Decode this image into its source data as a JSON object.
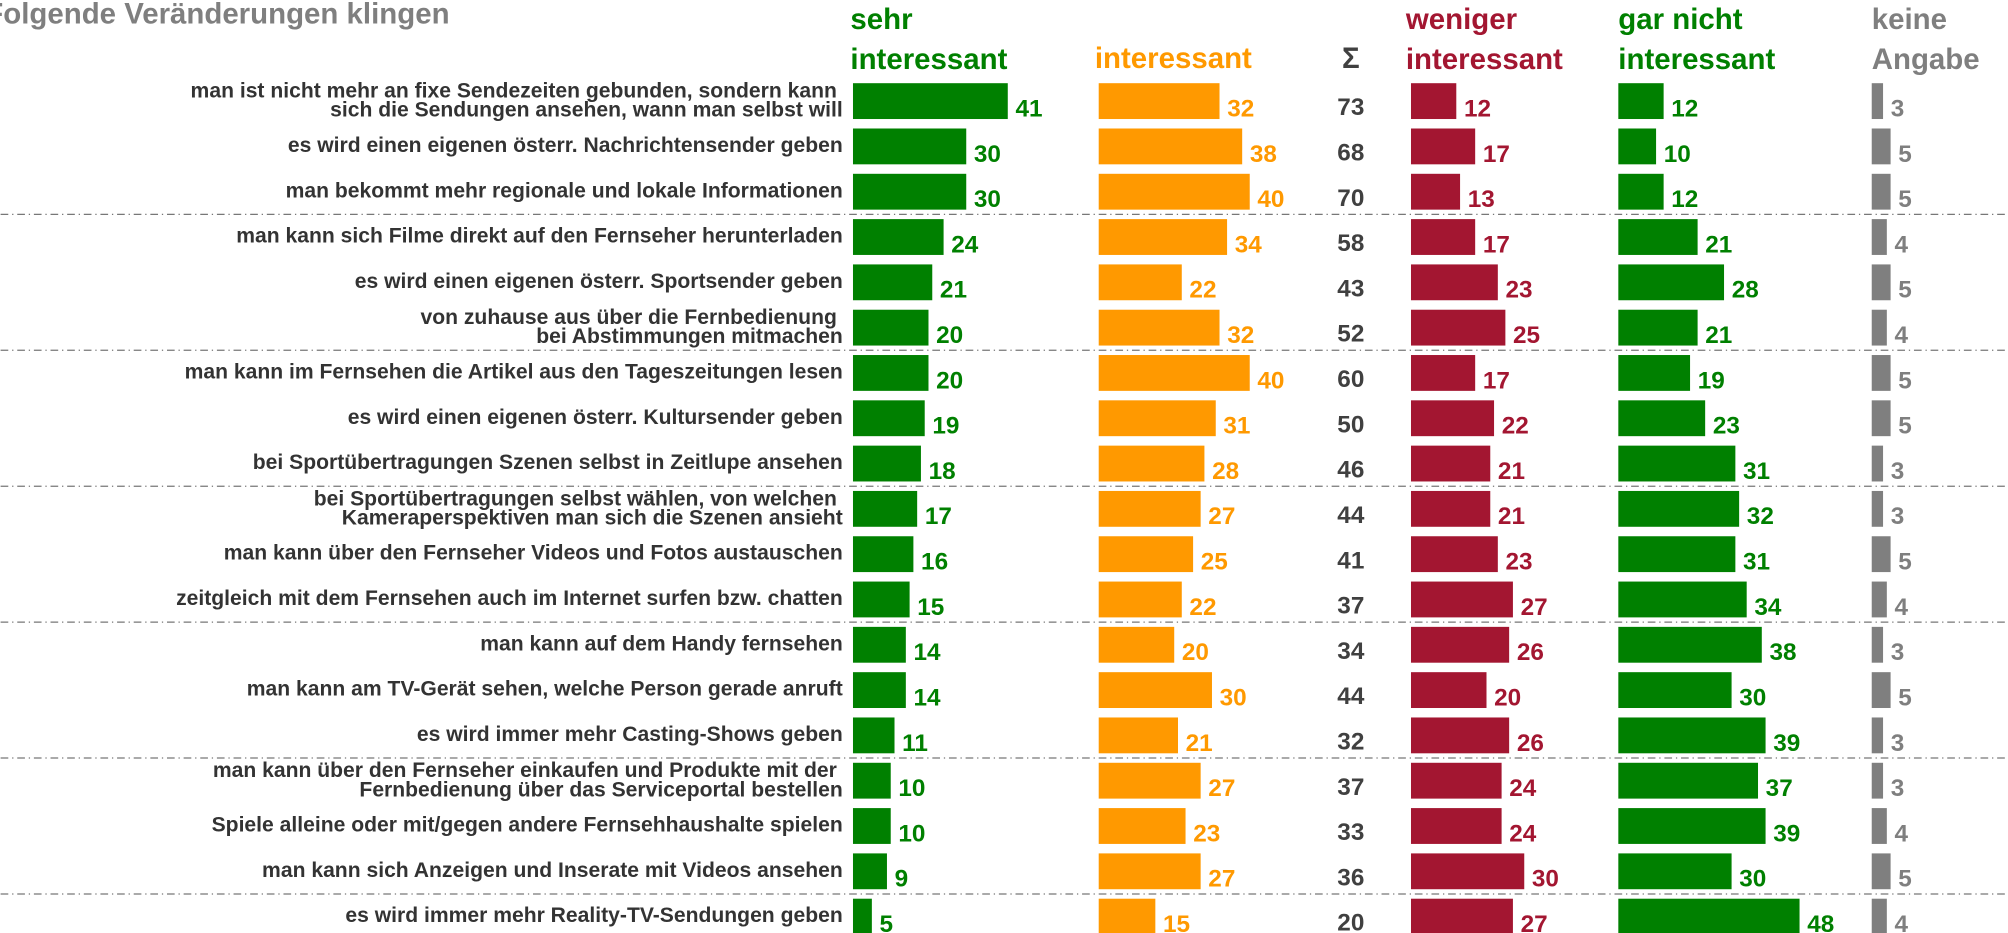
{
  "chart_data": {
    "type": "bar",
    "title": "Folgende Veränderungen klingen",
    "categories": [
      "man ist nicht mehr an fixe Sendezeiten gebunden, sondern kann\nsich die Sendungen ansehen, wann man selbst will",
      "es wird einen eigenen österr. Nachrichtensender geben",
      "man bekommt mehr regionale und lokale Informationen",
      "man kann sich Filme direkt auf den Fernseher herunterladen",
      "es wird einen eigenen österr. Sportsender geben",
      "von zuhause aus über die Fernbedienung\nbei Abstimmungen mitmachen",
      "man kann im Fernsehen die Artikel aus den Tageszeitungen lesen",
      "es wird einen eigenen österr. Kultursender geben",
      "bei Sportübertragungen Szenen selbst in Zeitlupe ansehen",
      "bei Sportübertragungen selbst wählen, von welchen\nKameraperspektiven man sich die Szenen ansieht",
      "man kann über den Fernseher Videos und Fotos austauschen",
      "zeitgleich mit dem Fernsehen auch im Internet surfen bzw. chatten",
      "man kann auf dem Handy fernsehen",
      "man kann am TV-Gerät sehen, welche Person gerade anruft",
      "es wird immer mehr Casting-Shows geben",
      "man kann über den Fernseher einkaufen und Produkte mit der\nFernbedienung über das Serviceportal bestellen",
      "Spiele alleine oder mit/gegen andere Fernsehhaushalte spielen",
      "man kann sich Anzeigen und Inserate mit Videos ansehen",
      "es wird immer mehr Reality-TV-Sendungen geben"
    ],
    "series": [
      {
        "name": "sehr\ninteressant",
        "color": "#008000",
        "values": [
          41,
          30,
          30,
          24,
          21,
          20,
          20,
          19,
          18,
          17,
          16,
          15,
          14,
          14,
          11,
          10,
          10,
          9,
          5
        ]
      },
      {
        "name": "interessant",
        "color": "#ff9900",
        "values": [
          32,
          38,
          40,
          34,
          22,
          32,
          40,
          31,
          28,
          27,
          25,
          22,
          20,
          30,
          21,
          27,
          23,
          27,
          15
        ]
      },
      {
        "name": "Σ",
        "color": "#404040",
        "bars": false,
        "values": [
          73,
          68,
          70,
          58,
          43,
          52,
          60,
          50,
          46,
          44,
          41,
          37,
          34,
          44,
          32,
          37,
          33,
          36,
          20
        ]
      },
      {
        "name": "weniger\ninteressant",
        "color": "#a31631",
        "values": [
          12,
          17,
          13,
          17,
          23,
          25,
          17,
          22,
          21,
          21,
          23,
          27,
          26,
          20,
          26,
          24,
          24,
          30,
          27
        ]
      },
      {
        "name": "gar nicht\ninteressant",
        "color": "#008000",
        "values": [
          12,
          10,
          12,
          21,
          28,
          21,
          19,
          23,
          31,
          32,
          31,
          34,
          38,
          30,
          39,
          37,
          39,
          30,
          48
        ]
      },
      {
        "name": "keine\nAngabe",
        "color": "#7f7f7f",
        "values": [
          3,
          5,
          5,
          4,
          5,
          4,
          5,
          5,
          3,
          3,
          5,
          4,
          3,
          5,
          3,
          3,
          4,
          5,
          4
        ]
      }
    ]
  }
}
